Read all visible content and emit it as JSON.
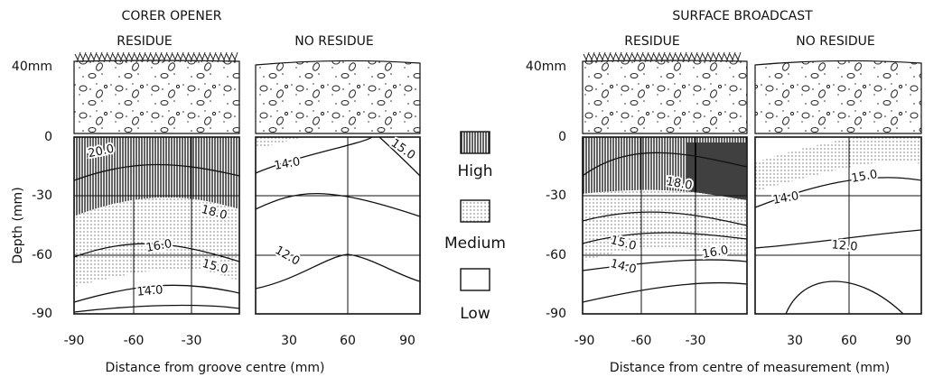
{
  "y_label": "Depth (mm)",
  "legend": [
    "High",
    "Medium",
    "Low"
  ],
  "panels": [
    {
      "title": "CORER OPENER",
      "subplots": [
        "RESIDUE",
        "NO RESIDUE"
      ],
      "soil_label": "40mm",
      "y_ticks": [
        "0",
        "-30",
        "-60",
        "-90"
      ],
      "x_ticks": [
        "-90",
        "-60",
        "-30",
        "30",
        "60",
        "90"
      ],
      "x_label": "Distance from groove centre (mm)",
      "contour_labels": [
        [
          "20.0",
          "18.0",
          "16.0",
          "15.0",
          "14.0"
        ],
        [
          "14.0",
          "15.0",
          "12.0"
        ]
      ]
    },
    {
      "title": "SURFACE BROADCAST",
      "subplots": [
        "RESIDUE",
        "NO RESIDUE"
      ],
      "soil_label": "40mm",
      "y_ticks": [
        "0",
        "-30",
        "-60",
        "-90"
      ],
      "x_ticks": [
        "-90",
        "-60",
        "-30",
        "30",
        "60",
        "90"
      ],
      "x_label": "Distance from centre of measurement (mm)",
      "contour_labels": [
        [
          "18.0",
          "15.0",
          "16.0",
          "14.0"
        ],
        [
          "15.0",
          "14.0",
          "12.0"
        ]
      ]
    }
  ]
}
